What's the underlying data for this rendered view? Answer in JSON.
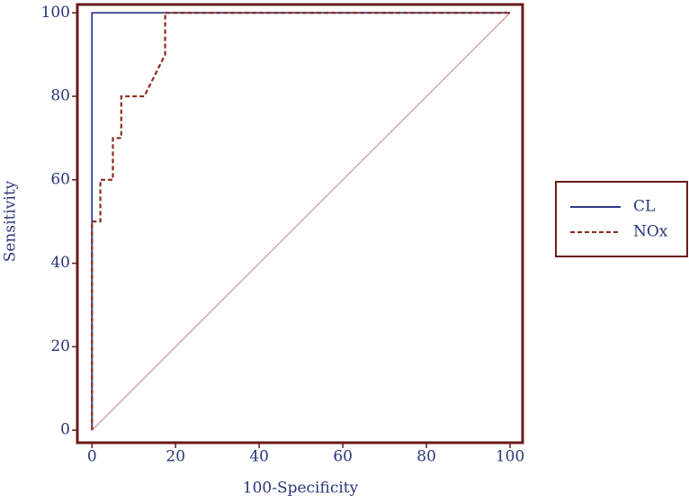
{
  "chart_data": {
    "type": "line",
    "xlabel": "100-Specificity",
    "ylabel": "Sensitivity",
    "xlim": [
      -3.5,
      103
    ],
    "ylim": [
      -3,
      102
    ],
    "xticks": [
      0,
      20,
      40,
      60,
      80,
      100
    ],
    "yticks": [
      0,
      20,
      40,
      60,
      80,
      100
    ],
    "legend": "right",
    "series": [
      {
        "name": "CL",
        "color": "#2e3a87",
        "dashed": false,
        "x": [
          0,
          0,
          100
        ],
        "values": [
          0,
          100,
          100
        ]
      },
      {
        "name": "NOx",
        "color": "#8b2c1f",
        "dashed": true,
        "x": [
          0,
          0,
          2,
          2,
          5,
          5,
          7,
          7,
          12.5,
          17.5,
          17.5,
          100
        ],
        "values": [
          0,
          50,
          50,
          60,
          60,
          70,
          70,
          80,
          80,
          90,
          100,
          100
        ]
      }
    ]
  }
}
